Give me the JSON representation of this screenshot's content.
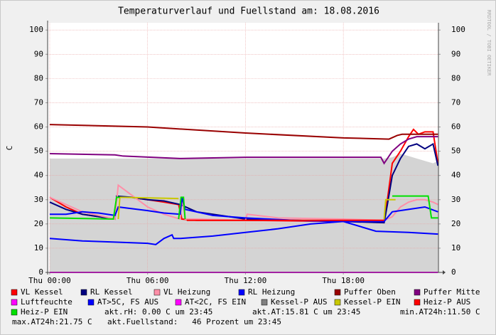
{
  "chart_data": {
    "type": "line",
    "title": "Temperaturverlauf und Fuellstand am: 18.08.2016",
    "ylabel": "C",
    "watermark": "RRDTOOL / TOBI OETIKER",
    "xlim": [
      -0.13,
      23.83
    ],
    "ylim": [
      0,
      103
    ],
    "xticks": [
      {
        "value": 0,
        "label": "Thu 00:00"
      },
      {
        "value": 6,
        "label": "Thu 06:00"
      },
      {
        "value": 12,
        "label": "Thu 12:00"
      },
      {
        "value": 18,
        "label": "Thu 18:00"
      }
    ],
    "yticks": [
      0,
      10,
      20,
      30,
      40,
      50,
      60,
      70,
      80,
      90,
      100
    ],
    "grid": true,
    "series": [
      {
        "name": "VL Kessel",
        "color": "#ff0000",
        "x": [
          0,
          1,
          2,
          3,
          4,
          4.1,
          5,
          6,
          7,
          7.9,
          8.1,
          9,
          12,
          18,
          20.5,
          20.7,
          21,
          21.5,
          22,
          22.3,
          22.6,
          23,
          23.5,
          23.8
        ],
        "values": [
          31,
          27,
          24,
          23,
          22,
          31,
          31,
          30,
          29,
          28,
          22,
          21.5,
          21.5,
          21,
          21,
          30,
          45,
          50,
          56,
          59,
          57,
          58,
          58,
          45
        ]
      },
      {
        "name": "RL Kessel",
        "color": "#000080",
        "x": [
          0,
          1,
          2,
          3,
          4,
          4.1,
          5,
          6,
          7,
          8,
          9,
          12,
          18,
          20.5,
          20.7,
          21,
          21.5,
          22,
          22.5,
          23,
          23.5,
          23.8
        ],
        "values": [
          29,
          26,
          24,
          23,
          22,
          31.5,
          31,
          30,
          29.5,
          28,
          25,
          22,
          21,
          20.5,
          28,
          40,
          47,
          52,
          53,
          51,
          53,
          44
        ]
      },
      {
        "name": "VL Heizung",
        "color": "#ff8fa8",
        "x": [
          0,
          2,
          4,
          4.2,
          5,
          6,
          7,
          8,
          8.1,
          8.3,
          9,
          12,
          12.1,
          14,
          18,
          20.5,
          21,
          21.5,
          22,
          22.5,
          23,
          23.5,
          23.8
        ],
        "values": [
          31,
          25,
          22,
          36,
          32,
          27,
          24,
          22,
          31,
          22,
          22,
          21.5,
          24,
          22.5,
          22,
          21.5,
          23,
          27,
          29,
          30,
          30,
          29,
          28
        ]
      },
      {
        "name": "RL Heizung",
        "color": "#0000ff",
        "x": [
          0,
          1,
          2,
          3,
          4,
          4.2,
          6,
          7,
          8,
          8.1,
          8.3,
          10,
          12,
          15,
          18,
          20.5,
          21,
          22,
          23,
          23.8
        ],
        "values": [
          24,
          24,
          25,
          24.5,
          23.5,
          27,
          25.5,
          24.5,
          24,
          31,
          26,
          23.5,
          22.5,
          21.5,
          21,
          21,
          25,
          26,
          27,
          25
        ]
      },
      {
        "name": "Puffer Oben",
        "color": "#990000",
        "x": [
          0,
          6,
          12,
          18,
          20.8,
          21.3,
          21.6,
          22,
          23,
          23.5,
          23.8
        ],
        "values": [
          61,
          60,
          57.5,
          55.5,
          55,
          56.5,
          57,
          57,
          57,
          57,
          57
        ]
      },
      {
        "name": "Puffer Mitte",
        "color": "#800080",
        "x": [
          0,
          4,
          4.5,
          8,
          12,
          18,
          20.3,
          20.5,
          21,
          21.5,
          22,
          22.5,
          23,
          23.8
        ],
        "values": [
          49,
          48.5,
          48,
          47,
          47.5,
          47.5,
          47.5,
          45,
          50,
          53,
          55,
          56,
          56,
          56
        ]
      },
      {
        "name": "Luftfeuchte",
        "color": "#ff00ff",
        "x": [
          0,
          23.8
        ],
        "values": [
          0,
          0
        ]
      },
      {
        "name": "AT>5C, FS AUS",
        "color": "#0000ff",
        "x": [
          0,
          2,
          4,
          6,
          6.5,
          7,
          7.5,
          7.6,
          8,
          10,
          12,
          14,
          16,
          18,
          20,
          22,
          23.8
        ],
        "values": [
          14,
          13,
          12.5,
          12,
          11.5,
          14,
          15.5,
          14,
          14,
          15,
          16.5,
          18,
          20,
          21,
          17,
          16.5,
          15.8
        ]
      },
      {
        "name": "AT<2C, FS EIN",
        "color": "#ff00ff",
        "x": [],
        "values": []
      },
      {
        "name": "Kessel-P AUS",
        "color": "#808080",
        "fill": "#d4d4d4",
        "x": [
          0,
          4,
          4.5,
          8,
          18,
          19,
          20,
          20.5,
          21,
          21.5,
          22,
          22.5,
          23,
          23.5,
          23.8
        ],
        "values": [
          47,
          47,
          47,
          47,
          47,
          47,
          47,
          47,
          47.5,
          49,
          48,
          47,
          46,
          45,
          46
        ]
      },
      {
        "name": "Kessel-P EIN",
        "color": "#c8c800",
        "x": [
          4.2,
          4.3,
          7.9,
          8.0,
          20.5,
          20.6,
          21.2
        ],
        "values": [
          22,
          31,
          30.5,
          null,
          22,
          30,
          30
        ]
      },
      {
        "name": "Heiz-P AUS",
        "color": "#ff0000",
        "x": [
          8.4,
          20.5
        ],
        "values": [
          21.5,
          21.5
        ]
      },
      {
        "name": "Heiz-P EIN",
        "color": "#00e000",
        "x": [
          0,
          3.9,
          4.1,
          4.3,
          4.4,
          7.9,
          8.05,
          8.2,
          8.3,
          20.8,
          21,
          23.2,
          23.4,
          23.8
        ],
        "values": [
          22.5,
          22,
          31,
          31,
          null,
          22,
          31,
          31,
          22,
          null,
          31.5,
          31.5,
          22.5,
          22.5
        ]
      }
    ],
    "comments": [
      "akt.rH: 0.00 C um 23:45",
      "akt.AT:15.81 C um 23:45",
      "min.AT24h:11.50 C",
      "max.AT24h:21.75 C",
      "akt.Fuellstand:   46 Prozent um 23:45"
    ]
  }
}
